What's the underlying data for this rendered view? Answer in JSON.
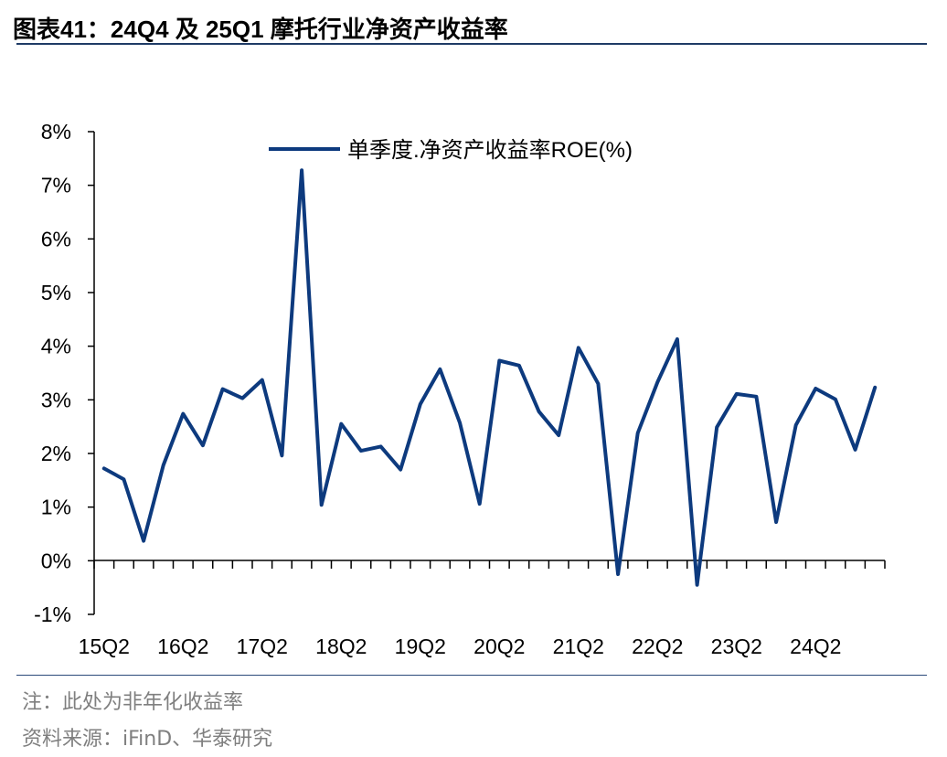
{
  "header": {
    "title": "图表41：24Q4 及 25Q1 摩托行业净资产收益率"
  },
  "chart_data": {
    "type": "line",
    "title": "图表41：24Q4 及 25Q1 摩托行业净资产收益率",
    "xlabel": "",
    "ylabel": "",
    "ylim": [
      -1,
      8
    ],
    "y_unit": "%",
    "y_ticks": [
      "-1%",
      "0%",
      "1%",
      "2%",
      "3%",
      "4%",
      "5%",
      "6%",
      "7%",
      "8%"
    ],
    "x_tick_labels": [
      "15Q2",
      "16Q2",
      "17Q2",
      "18Q2",
      "19Q2",
      "20Q2",
      "21Q2",
      "22Q2",
      "23Q2",
      "24Q2"
    ],
    "x": [
      "15Q2",
      "15Q3",
      "15Q4",
      "16Q1",
      "16Q2",
      "16Q3",
      "16Q4",
      "17Q1",
      "17Q2",
      "17Q3",
      "17Q4",
      "18Q1",
      "18Q2",
      "18Q3",
      "18Q4",
      "19Q1",
      "19Q2",
      "19Q3",
      "19Q4",
      "20Q1",
      "20Q2",
      "20Q3",
      "20Q4",
      "21Q1",
      "21Q2",
      "21Q3",
      "21Q4",
      "22Q1",
      "22Q2",
      "22Q3",
      "22Q4",
      "23Q1",
      "23Q2",
      "23Q3",
      "23Q4",
      "24Q1",
      "24Q2",
      "24Q3",
      "24Q4",
      "25Q1"
    ],
    "series": [
      {
        "name": "单季度.净资产收益率ROE(%)",
        "color": "#0d3a7e",
        "values": [
          1.72,
          1.52,
          0.37,
          1.78,
          2.74,
          2.15,
          3.2,
          3.03,
          3.37,
          1.96,
          7.28,
          1.04,
          2.55,
          2.05,
          2.13,
          1.7,
          2.92,
          3.57,
          2.57,
          1.06,
          3.73,
          3.64,
          2.78,
          2.34,
          3.97,
          3.3,
          -0.25,
          2.38,
          3.33,
          4.13,
          -0.45,
          2.49,
          3.11,
          3.06,
          0.72,
          2.53,
          3.21,
          3.01,
          2.07,
          3.23
        ]
      }
    ],
    "legend": "top-center"
  },
  "footnotes": {
    "note": "注：此处为非年化收益率",
    "source": "资料来源：iFinD、华泰研究"
  }
}
